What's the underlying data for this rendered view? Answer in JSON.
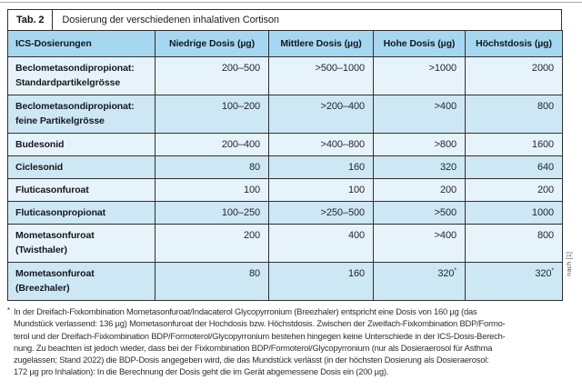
{
  "header": {
    "tag": "Tab. 2",
    "title": "Dosierung der verschiedenen inhalativen Cortison"
  },
  "table": {
    "columns": {
      "c1": "ICS-Dosierungen",
      "c2": "Niedrige Dosis (µg)",
      "c3": "Mittlere Dosis (µg)",
      "c4": "Hohe Dosis (µg)",
      "c5": "Höchstdosis (µg)"
    },
    "rows": [
      {
        "name1": "Beclometasondipropionat:",
        "name2": "Standardpartikelgrösse",
        "low": "200–500",
        "mid": ">500–1000",
        "high": ">1000",
        "max": "2000"
      },
      {
        "name1": "Beclometasondipropionat:",
        "name2": "feine Partikelgrösse",
        "low": "100–200",
        "mid": ">200–400",
        "high": ">400",
        "max": "800"
      },
      {
        "name1": "Budesonid",
        "low": "200–400",
        "mid": ">400–800",
        "high": ">800",
        "max": "1600"
      },
      {
        "name1": "Ciclesonid",
        "low": "80",
        "mid": "160",
        "high": "320",
        "max": "640"
      },
      {
        "name1": "Fluticasonfuroat",
        "low": "100",
        "mid": "100",
        "high": "200",
        "max": "200"
      },
      {
        "name1": "Fluticasonpropionat",
        "low": "100–250",
        "mid": ">250–500",
        "high": ">500",
        "max": "1000"
      },
      {
        "name1": "Mometasonfuroat",
        "name2": "(Twisthaler)",
        "low": "200",
        "mid": "400",
        "high": ">400",
        "max": "800"
      },
      {
        "name1": "Mometasonfuroat",
        "name2": "(Breezhaler)",
        "low": "80",
        "mid": "160",
        "high": "320",
        "high_sup": "*",
        "max": "320",
        "max_sup": "*"
      }
    ]
  },
  "source_note": "nach [1]",
  "footnote": {
    "marker": "*",
    "lines": [
      "In der Dreifach-Fixkombination Mometasonfuroat/Indacaterol Glycopyrronium (Breezhaler) entspricht eine Dosis von 160 µg (das",
      "Mundstück verlassend: 136 µg) Mometasonfuroat der Hochdosis bzw. Höchstdosis. Zwischen der Zweifach-Fixkombination BDP/Formo-",
      "terol und der Dreifach-Fixkombination BDP/Formoterol/Glycopyrronium bestehen hingegen keine Unterschiede in der ICS-Dosis-Berech-",
      "nung. Zu beachten ist jedoch wieder, dass bei der Fixkombination BDP/Formoterol/Glycopyrronium (nur als Dosieraerosol für Asthma",
      "zugelassen; Stand 2022) die BDP-Dosis angegeben wird, die das Mundstück verlässt (in der höchsten Dosierung als Dosieraerosol:",
      "172 µg pro Inhalation): In die Berechnung der Dosis geht die im Gerät abgemessene Dosis ein (200 µg)."
    ]
  },
  "colors": {
    "header_bg": "#a6d7f0",
    "row_light": "#e7f3fa",
    "row_dark": "#cde7f5",
    "border": "#2f2f2f"
  }
}
